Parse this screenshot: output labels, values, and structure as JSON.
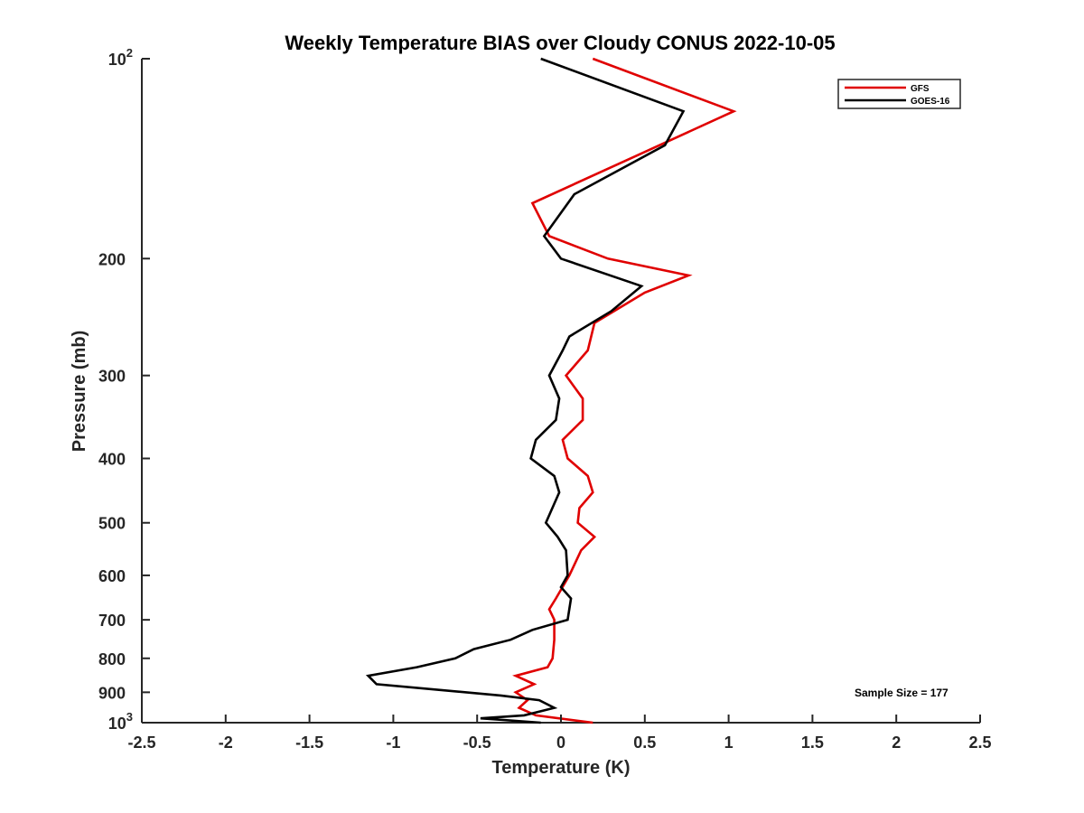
{
  "chart_data": {
    "type": "line",
    "title": "Weekly Temperature BIAS over Cloudy CONUS 2022-10-05",
    "xlabel": "Temperature (K)",
    "ylabel": "Pressure (mb)",
    "xlim": [
      -2.5,
      2.5
    ],
    "ylim": [
      100,
      1000
    ],
    "yscale": "log",
    "y_reversed": true,
    "grid": false,
    "legend_position": "top-right",
    "x_ticks": [
      {
        "value": -2.5,
        "label": "-2.5"
      },
      {
        "value": -2,
        "label": "-2"
      },
      {
        "value": -1.5,
        "label": "-1.5"
      },
      {
        "value": -1,
        "label": "-1"
      },
      {
        "value": -0.5,
        "label": "-0.5"
      },
      {
        "value": 0,
        "label": "0"
      },
      {
        "value": 0.5,
        "label": "0.5"
      },
      {
        "value": 1,
        "label": "1"
      },
      {
        "value": 1.5,
        "label": "1.5"
      },
      {
        "value": 2,
        "label": "2"
      },
      {
        "value": 2.5,
        "label": "2.5"
      }
    ],
    "y_ticks": [
      {
        "value": 100,
        "base": "10",
        "exp": "2"
      },
      {
        "value": 200,
        "label": "200"
      },
      {
        "value": 300,
        "label": "300"
      },
      {
        "value": 400,
        "label": "400"
      },
      {
        "value": 500,
        "label": "500"
      },
      {
        "value": 600,
        "label": "600"
      },
      {
        "value": 700,
        "label": "700"
      },
      {
        "value": 800,
        "label": "800"
      },
      {
        "value": 900,
        "label": "900"
      },
      {
        "value": 1000,
        "base": "10",
        "exp": "3"
      }
    ],
    "series": [
      {
        "name": "GFS",
        "color": "#e00000",
        "points": [
          {
            "x": 0.19,
            "y": 1000
          },
          {
            "x": -0.15,
            "y": 975
          },
          {
            "x": -0.25,
            "y": 950
          },
          {
            "x": -0.2,
            "y": 925
          },
          {
            "x": -0.27,
            "y": 900
          },
          {
            "x": -0.16,
            "y": 875
          },
          {
            "x": -0.27,
            "y": 850
          },
          {
            "x": -0.08,
            "y": 825
          },
          {
            "x": -0.05,
            "y": 800
          },
          {
            "x": -0.04,
            "y": 750
          },
          {
            "x": -0.04,
            "y": 700
          },
          {
            "x": -0.07,
            "y": 675
          },
          {
            "x": -0.03,
            "y": 650
          },
          {
            "x": 0.05,
            "y": 600
          },
          {
            "x": 0.12,
            "y": 550
          },
          {
            "x": 0.2,
            "y": 525
          },
          {
            "x": 0.1,
            "y": 500
          },
          {
            "x": 0.11,
            "y": 475
          },
          {
            "x": 0.19,
            "y": 450
          },
          {
            "x": 0.16,
            "y": 425
          },
          {
            "x": 0.04,
            "y": 400
          },
          {
            "x": 0.01,
            "y": 375
          },
          {
            "x": 0.13,
            "y": 350
          },
          {
            "x": 0.13,
            "y": 325
          },
          {
            "x": 0.03,
            "y": 300
          },
          {
            "x": 0.16,
            "y": 275
          },
          {
            "x": 0.2,
            "y": 250
          },
          {
            "x": 0.5,
            "y": 225
          },
          {
            "x": 0.76,
            "y": 212
          },
          {
            "x": 0.28,
            "y": 200
          },
          {
            "x": -0.07,
            "y": 185
          },
          {
            "x": -0.17,
            "y": 165
          },
          {
            "x": 0.45,
            "y": 140
          },
          {
            "x": 1.03,
            "y": 120
          },
          {
            "x": 0.19,
            "y": 100
          }
        ]
      },
      {
        "name": "GOES-16",
        "color": "#000000",
        "points": [
          {
            "x": -0.12,
            "y": 1000
          },
          {
            "x": -0.48,
            "y": 985
          },
          {
            "x": -0.22,
            "y": 975
          },
          {
            "x": -0.04,
            "y": 950
          },
          {
            "x": -0.13,
            "y": 925
          },
          {
            "x": -0.36,
            "y": 910
          },
          {
            "x": -1.1,
            "y": 875
          },
          {
            "x": -1.15,
            "y": 850
          },
          {
            "x": -0.86,
            "y": 825
          },
          {
            "x": -0.63,
            "y": 800
          },
          {
            "x": -0.52,
            "y": 775
          },
          {
            "x": -0.3,
            "y": 750
          },
          {
            "x": -0.17,
            "y": 725
          },
          {
            "x": 0.04,
            "y": 700
          },
          {
            "x": 0.06,
            "y": 650
          },
          {
            "x": 0.0,
            "y": 625
          },
          {
            "x": 0.04,
            "y": 600
          },
          {
            "x": 0.03,
            "y": 550
          },
          {
            "x": -0.02,
            "y": 525
          },
          {
            "x": -0.09,
            "y": 500
          },
          {
            "x": -0.01,
            "y": 450
          },
          {
            "x": -0.04,
            "y": 425
          },
          {
            "x": -0.18,
            "y": 400
          },
          {
            "x": -0.15,
            "y": 375
          },
          {
            "x": -0.03,
            "y": 350
          },
          {
            "x": -0.01,
            "y": 325
          },
          {
            "x": -0.07,
            "y": 300
          },
          {
            "x": 0.01,
            "y": 275
          },
          {
            "x": 0.05,
            "y": 262
          },
          {
            "x": 0.3,
            "y": 240
          },
          {
            "x": 0.48,
            "y": 220
          },
          {
            "x": 0.0,
            "y": 200
          },
          {
            "x": -0.1,
            "y": 185
          },
          {
            "x": 0.08,
            "y": 160
          },
          {
            "x": 0.62,
            "y": 135
          },
          {
            "x": 0.73,
            "y": 120
          },
          {
            "x": -0.12,
            "y": 100
          }
        ]
      }
    ],
    "annotations": [
      {
        "text": "Sample Size = 177"
      }
    ]
  }
}
